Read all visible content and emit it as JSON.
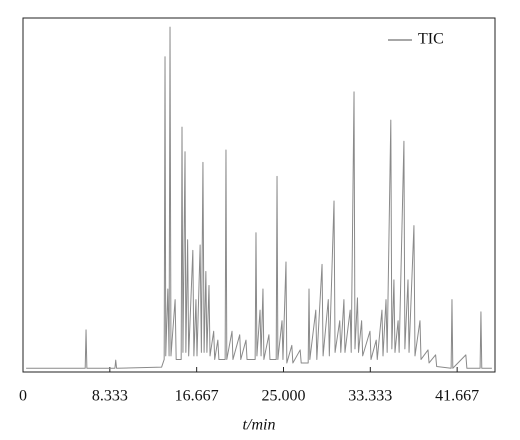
{
  "chart_data": {
    "type": "line",
    "x_label": "t/min",
    "legend": "upper right",
    "xlim": [
      0,
      45.3
    ],
    "ylim": [
      0,
      100
    ],
    "xticks": [
      0,
      8.333,
      16.667,
      {
        "value": 25,
        "label": "25.000"
      },
      33.333,
      41.667
    ],
    "x": [
      0.3,
      5.97,
      6.05,
      6.13,
      8.82,
      8.9,
      8.98,
      13.3,
      13.55,
      13.63,
      13.7,
      13.9,
      14.02,
      14.11,
      14.2,
      14.6,
      14.7,
      15.18,
      15.26,
      15.35,
      15.55,
      15.63,
      15.8,
      15.9,
      16.3,
      16.4,
      16.6,
      16.7,
      17.0,
      17.12,
      17.27,
      17.38,
      17.55,
      17.65,
      17.85,
      17.95,
      18.3,
      18.4,
      18.7,
      18.8,
      19.4,
      19.48,
      19.56,
      20.06,
      20.15,
      20.8,
      20.9,
      21.4,
      21.5,
      22.28,
      22.36,
      22.45,
      22.75,
      22.85,
      23.03,
      23.12,
      23.6,
      23.7,
      24.3,
      24.38,
      24.46,
      24.86,
      24.95,
      25.24,
      25.32,
      25.8,
      25.9,
      26.6,
      26.7,
      27.37,
      27.45,
      27.53,
      28.1,
      28.2,
      28.7,
      28.8,
      29.3,
      29.4,
      29.85,
      29.95,
      30.4,
      30.5,
      30.8,
      30.9,
      31.4,
      31.5,
      31.77,
      31.86,
      32.1,
      32.2,
      32.5,
      32.6,
      33.3,
      33.4,
      33.9,
      34.0,
      34.45,
      34.55,
      34.84,
      34.95,
      35.3,
      35.4,
      35.6,
      35.7,
      36.0,
      36.1,
      36.56,
      36.65,
      36.95,
      37.05,
      37.52,
      37.62,
      38.1,
      38.2,
      38.87,
      38.97,
      39.6,
      39.7,
      41.09,
      41.17,
      41.25,
      42.5,
      42.6,
      43.87,
      43.95,
      44.03,
      45.0
    ],
    "series": [
      {
        "name": "TIC",
        "color": "#8a8a8a",
        "values": [
          0.5,
          0.5,
          11.4,
          0.5,
          0.5,
          2.8,
          0.5,
          0.8,
          3,
          89,
          4,
          23,
          4,
          97.4,
          4,
          20,
          3,
          3,
          69,
          5,
          62,
          5,
          37,
          4,
          34,
          4,
          20,
          4,
          35.5,
          5,
          59,
          5,
          28,
          5,
          24,
          4,
          11,
          3,
          8.5,
          3,
          3,
          62.5,
          3,
          11,
          3,
          10,
          3,
          8.5,
          3,
          3,
          39,
          4,
          17,
          4,
          23,
          3,
          10,
          3,
          3,
          55,
          3,
          14,
          3,
          30.7,
          2,
          7,
          2,
          5.7,
          2,
          2,
          23,
          3,
          17,
          3,
          30,
          4,
          20,
          4,
          48,
          5,
          14,
          5,
          20,
          5,
          17,
          5,
          79,
          6,
          20.5,
          5,
          14,
          4,
          11,
          3,
          8.5,
          3,
          17,
          4,
          20,
          5,
          71,
          6,
          25.6,
          5,
          14,
          5,
          65,
          6,
          25.6,
          5,
          41,
          4,
          14,
          3,
          5.7,
          2,
          4.3,
          1,
          0.5,
          20,
          0.5,
          4.3,
          0.5,
          0.5,
          16.5,
          0.5,
          0.5
        ]
      }
    ]
  }
}
